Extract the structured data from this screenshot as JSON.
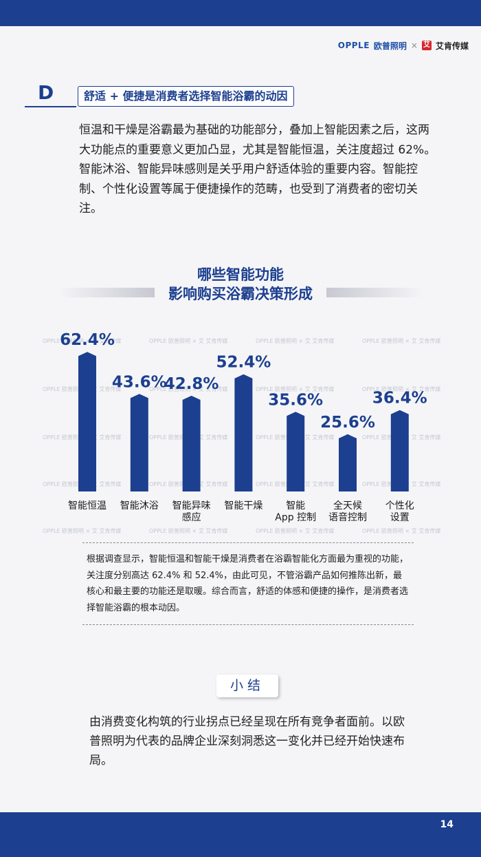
{
  "brand": {
    "opple": "OPPLE",
    "opple_cn": "欧普照明",
    "separator": "×",
    "partner_mark": "艾",
    "partner": "艾肯传媒"
  },
  "section": {
    "letter": "D",
    "heading": "舒适 + 便捷是消费者选择智能浴霸的动因",
    "intro": "恒温和干燥是浴霸最为基础的功能部分，叠加上智能因素之后，这两大功能点的重要意义更加凸显，尤其是智能恒温，关注度超过 62%。智能沐浴、智能异味感则是关乎用户舒适体验的重要内容。智能控制、个性化设置等属于便捷操作的范畴，也受到了消费者的密切关注。"
  },
  "chart_title": {
    "line1": "哪些智能功能",
    "line2": "影响购买浴霸决策形成"
  },
  "watermark": "OPPLE 欧普照明 × 艾 艾肯传媒",
  "chart_data": {
    "type": "bar",
    "title": "哪些智能功能 影响购买浴霸决策形成",
    "categories": [
      "智能恒温",
      "智能沐浴",
      "智能异味感应",
      "智能干燥",
      "智能App 控制",
      "全天候语音控制",
      "个性化设置"
    ],
    "category_lines": [
      [
        "智能恒温"
      ],
      [
        "智能沐浴"
      ],
      [
        "智能异味",
        "感应"
      ],
      [
        "智能干燥"
      ],
      [
        "智能",
        "App 控制"
      ],
      [
        "全天候",
        "语音控制"
      ],
      [
        "个性化",
        "设置"
      ]
    ],
    "values": [
      62.4,
      43.6,
      42.8,
      52.4,
      35.6,
      25.6,
      36.4
    ],
    "value_labels": [
      "62.4%",
      "43.6%",
      "42.8%",
      "52.4%",
      "35.6%",
      "25.6%",
      "36.4%"
    ],
    "unit": "%",
    "bar_color": "#1c3f8f",
    "ylim": [
      0,
      70
    ],
    "grid": false,
    "legend": "none"
  },
  "note": "根据调查显示，智能恒温和智能干燥是消费者在浴霸智能化方面最为重视的功能，关注度分别高达 62.4% 和 52.4%，由此可见，不管浴霸产品如何推陈出新，最核心和最主要的功能还是取暖。综合而言，舒适的体感和便捷的操作，是消费者选择智能浴霸的根本动因。",
  "summary": {
    "badge": "小结",
    "text": "由消费变化构筑的行业拐点已经呈现在所有竞争者面前。以欧普照明为代表的品牌企业深刻洞悉这一变化并已经开始快速布局。"
  },
  "page_number": "14",
  "colors": {
    "primary": "#1c3f8f",
    "background": "#f5f5f7"
  }
}
